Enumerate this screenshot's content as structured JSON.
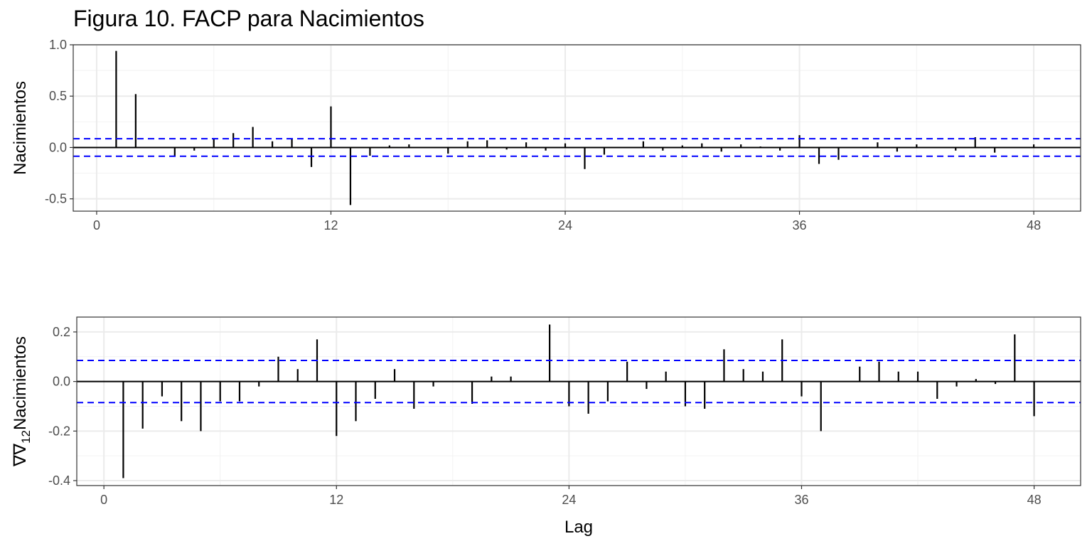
{
  "title": "Figura 10. FACP para Nacimientos",
  "colors": {
    "bars": "#000000",
    "ci": "#0000ff",
    "grid_major": "#ebebeb",
    "grid_minor": "#f2f2f2",
    "panel_border": "#333333"
  },
  "chart_data": [
    {
      "type": "bar",
      "subtype": "pacf",
      "title": "Figura 10. FACP para Nacimientos",
      "ylabel": "Nacimientos",
      "xlabel": "",
      "xlim": [
        -1.2,
        50.4
      ],
      "ylim": [
        -0.62,
        1.0
      ],
      "xticks": [
        0,
        12,
        24,
        36,
        48
      ],
      "yticks": [
        -0.5,
        0.0,
        0.5,
        1.0
      ],
      "ytick_labels": [
        "-0.5",
        "0.0",
        "0.5",
        "1.0"
      ],
      "ci": 0.085,
      "grid": true,
      "x": [
        1,
        2,
        3,
        4,
        5,
        6,
        7,
        8,
        9,
        10,
        11,
        12,
        13,
        14,
        15,
        16,
        17,
        18,
        19,
        20,
        21,
        22,
        23,
        24,
        25,
        26,
        27,
        28,
        29,
        30,
        31,
        32,
        33,
        34,
        35,
        36,
        37,
        38,
        39,
        40,
        41,
        42,
        43,
        44,
        45,
        46,
        47,
        48
      ],
      "values": [
        0.94,
        0.52,
        0.0,
        -0.08,
        -0.03,
        0.09,
        0.14,
        0.2,
        0.06,
        0.08,
        -0.19,
        0.4,
        -0.56,
        -0.08,
        0.02,
        0.03,
        0.0,
        -0.06,
        0.06,
        0.07,
        -0.02,
        0.05,
        -0.03,
        0.04,
        -0.21,
        -0.07,
        0.0,
        0.06,
        -0.03,
        0.02,
        0.04,
        -0.04,
        0.03,
        0.01,
        -0.03,
        0.12,
        -0.16,
        -0.12,
        0.0,
        0.05,
        -0.04,
        0.03,
        0.0,
        -0.03,
        0.1,
        -0.05,
        0.0,
        0.03
      ]
    },
    {
      "type": "bar",
      "subtype": "pacf",
      "ylabel_main": "∇∇",
      "ylabel_sub": "12",
      "ylabel_rest": "Nacimientos",
      "xlabel": "Lag",
      "xlim": [
        -1.4,
        50.4
      ],
      "ylim": [
        -0.42,
        0.26
      ],
      "xticks": [
        0,
        12,
        24,
        36,
        48
      ],
      "yticks": [
        -0.4,
        -0.2,
        0.0,
        0.2
      ],
      "ytick_labels": [
        "-0.4",
        "-0.2",
        "0.0",
        "0.2"
      ],
      "ci": 0.085,
      "grid": true,
      "x": [
        1,
        2,
        3,
        4,
        5,
        6,
        7,
        8,
        9,
        10,
        11,
        12,
        13,
        14,
        15,
        16,
        17,
        18,
        19,
        20,
        21,
        22,
        23,
        24,
        25,
        26,
        27,
        28,
        29,
        30,
        31,
        32,
        33,
        34,
        35,
        36,
        37,
        38,
        39,
        40,
        41,
        42,
        43,
        44,
        45,
        46,
        47,
        48
      ],
      "values": [
        -0.39,
        -0.19,
        -0.06,
        -0.16,
        -0.2,
        -0.08,
        -0.08,
        -0.02,
        0.1,
        0.05,
        0.17,
        -0.22,
        -0.16,
        -0.07,
        0.05,
        -0.11,
        -0.02,
        0.0,
        -0.09,
        0.02,
        0.02,
        0.0,
        0.23,
        -0.1,
        -0.13,
        -0.08,
        0.08,
        -0.03,
        0.04,
        -0.1,
        -0.11,
        0.13,
        0.05,
        0.04,
        0.17,
        -0.06,
        -0.2,
        0.0,
        0.06,
        0.08,
        0.04,
        0.04,
        -0.07,
        -0.02,
        0.01,
        -0.01,
        0.19,
        -0.14
      ]
    }
  ]
}
